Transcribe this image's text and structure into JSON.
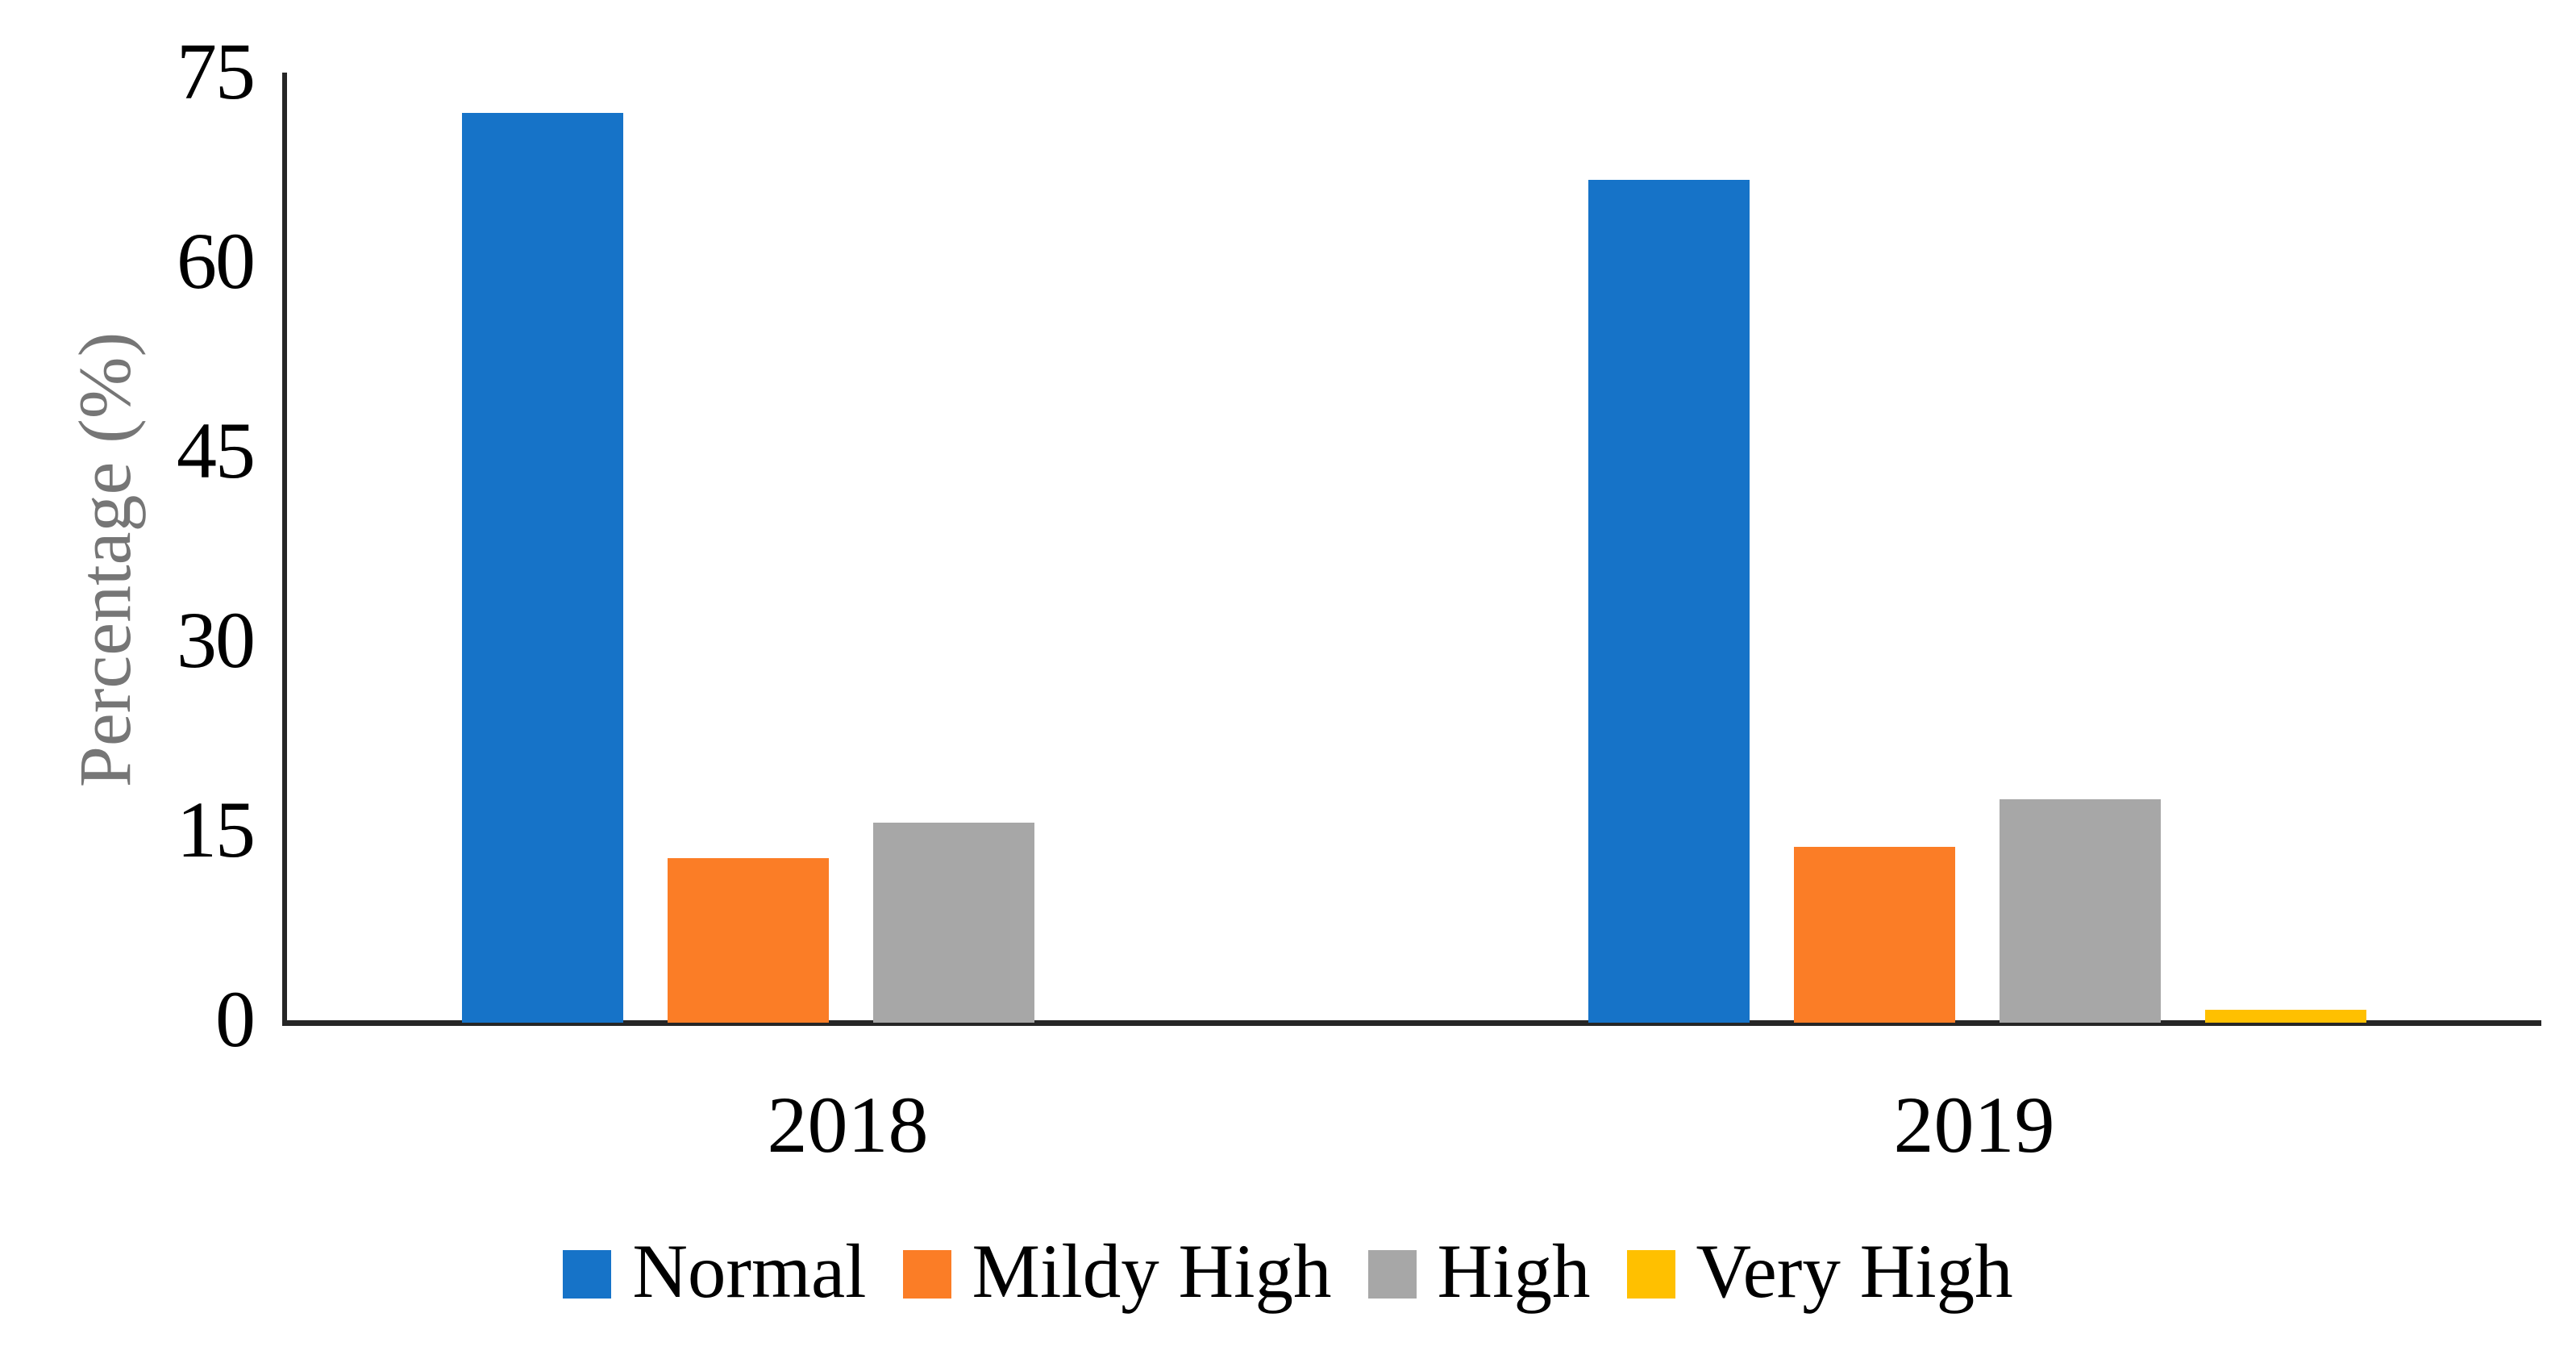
{
  "chart_data": {
    "type": "bar",
    "categories": [
      "2018",
      "2019"
    ],
    "series": [
      {
        "name": "Normal",
        "color": "#1673C8",
        "values": [
          72,
          66.7
        ]
      },
      {
        "name": "Mildy High",
        "color": "#FB7D26",
        "values": [
          13,
          13.9
        ]
      },
      {
        "name": "High",
        "color": "#A7A7A7",
        "values": [
          15.8,
          17.7
        ]
      },
      {
        "name": "Very High",
        "color": "#FFC000",
        "values": [
          0,
          1
        ]
      }
    ],
    "title": "",
    "xlabel": "",
    "ylabel": "Percentage (%)",
    "ylim": [
      0,
      75
    ],
    "yticks": [
      0,
      15,
      30,
      45,
      60,
      75
    ],
    "grid": false,
    "legend_position": "bottom",
    "axis_color": "#262626",
    "tick_label_color": "#000000",
    "axis_title_color": "#767676"
  }
}
